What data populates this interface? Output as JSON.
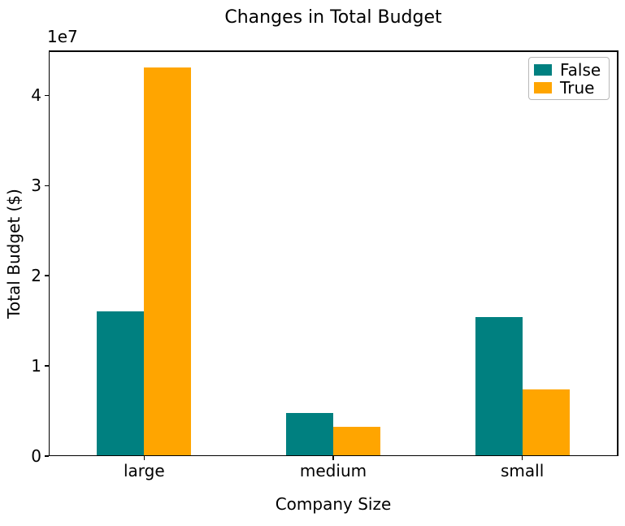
{
  "chart_data": {
    "type": "bar",
    "title": "Changes in Total Budget",
    "categories": [
      "large",
      "medium",
      "small"
    ],
    "series": [
      {
        "name": "False",
        "color": "#008080",
        "values": [
          16000000,
          4700000,
          15300000
        ]
      },
      {
        "name": "True",
        "color": "#FFA500",
        "values": [
          43000000,
          3200000,
          7300000
        ]
      }
    ],
    "xlabel": "Company Size",
    "ylabel": "Total Budget ($)",
    "ylim": [
      0,
      45000000
    ],
    "yticks": [
      0,
      10000000,
      20000000,
      30000000,
      40000000
    ],
    "ytick_labels": [
      "0",
      "1",
      "2",
      "3",
      "4"
    ],
    "y_scale_offset_text": "1e7",
    "legend_position": "upper right",
    "grid": false,
    "bar_width_fraction": 0.25,
    "axis_color": "#000000",
    "background_color": "#ffffff"
  }
}
